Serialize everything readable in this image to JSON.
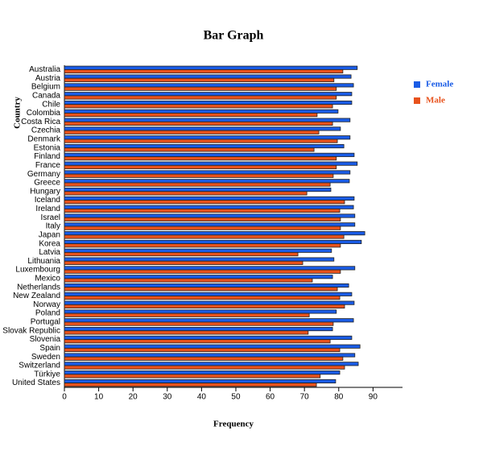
{
  "chart_data": {
    "type": "hbar",
    "title": "Bar Graph",
    "x_label": "Frequency",
    "y_label": "Country",
    "categories": [
      "Australia",
      "Austria",
      "Belgium",
      "Canada",
      "Chile",
      "Colombia",
      "Costa Rica",
      "Czechia",
      "Denmark",
      "Estonia",
      "Finland",
      "France",
      "Germany",
      "Greece",
      "Hungary",
      "Iceland",
      "Ireland",
      "Israel",
      "Italy",
      "Japan",
      "Korea",
      "Latvia",
      "Lithuania",
      "Luxembourg",
      "Mexico",
      "Netherlands",
      "New Zealand",
      "Norway",
      "Poland",
      "Portugal",
      "Slovak Republic",
      "Slovenia",
      "Spain",
      "Sweden",
      "Switzerland",
      "Türkiye",
      "United States"
    ],
    "series": [
      {
        "name": "Female",
        "color": "#1a5ce6",
        "values": [
          85.4,
          83.6,
          84.3,
          83.8,
          83.8,
          79.8,
          83.3,
          80.5,
          83.3,
          81.5,
          84.5,
          85.4,
          83.3,
          83.1,
          77.7,
          84.5,
          84.3,
          84.7,
          84.7,
          87.6,
          86.6,
          77.9,
          78.6,
          84.7,
          78.2,
          82.9,
          83.8,
          84.5,
          79.3,
          84.3,
          78.2,
          83.8,
          86.2,
          84.7,
          85.7,
          80.3,
          79.1
        ]
      },
      {
        "name": "Male",
        "color": "#e8521c",
        "values": [
          81.2,
          78.6,
          79.3,
          79.3,
          78.2,
          73.7,
          78.2,
          74.2,
          79.6,
          72.8,
          79.3,
          79.3,
          78.4,
          77.5,
          70.7,
          81.7,
          80.3,
          80.5,
          80.5,
          81.5,
          80.5,
          68.1,
          69.5,
          80.5,
          72.3,
          79.6,
          80.3,
          81.7,
          71.4,
          78.4,
          71.1,
          77.5,
          80.3,
          81.2,
          81.7,
          74.6,
          73.5
        ]
      }
    ],
    "xlim": [
      0,
      98.6
    ],
    "xticks": [
      0,
      10,
      20,
      30,
      40,
      50,
      60,
      70,
      80,
      90
    ]
  }
}
